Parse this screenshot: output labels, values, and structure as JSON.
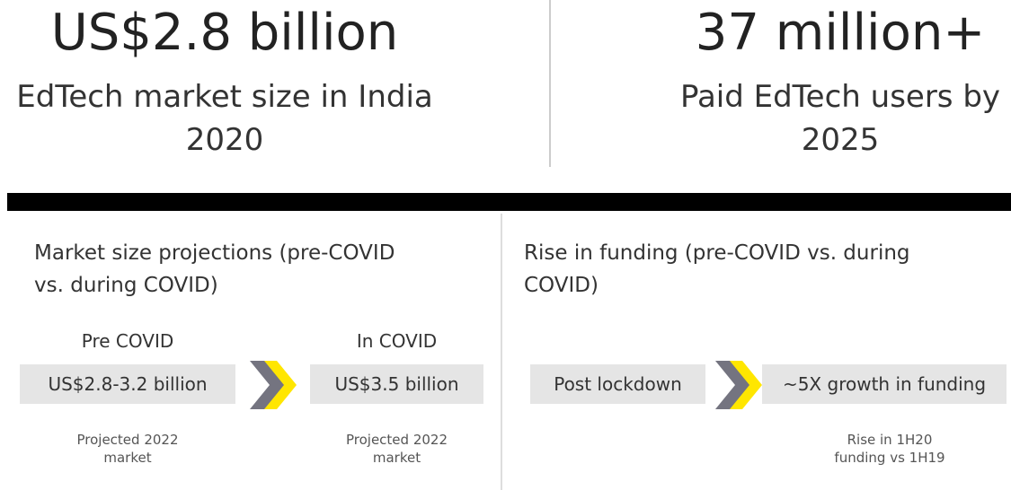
{
  "top": {
    "left": {
      "figure": "US$2.8 billion",
      "caption": [
        "EdTech market size in India",
        "2020"
      ]
    },
    "right": {
      "figure": "37 million+",
      "caption": [
        "Paid EdTech users by",
        "2025"
      ]
    }
  },
  "panels": [
    {
      "title": [
        "Market size projections (pre-COVID",
        "vs. during COVID)"
      ],
      "steps": [
        {
          "label": "Pre COVID",
          "box": "US$2.8-3.2 billion",
          "note": [
            "Projected 2022",
            "market"
          ]
        },
        {
          "label": "In COVID",
          "box": "US$3.5 billion",
          "note": [
            "Projected 2022",
            "market"
          ]
        }
      ]
    },
    {
      "title": [
        "Rise in funding (pre-COVID vs. during",
        "COVID)"
      ],
      "steps": [
        {
          "box": "Post lockdown"
        },
        {
          "box": "~5X growth in funding",
          "note": [
            "Rise in 1H20",
            "funding vs 1H19"
          ]
        }
      ]
    }
  ]
}
